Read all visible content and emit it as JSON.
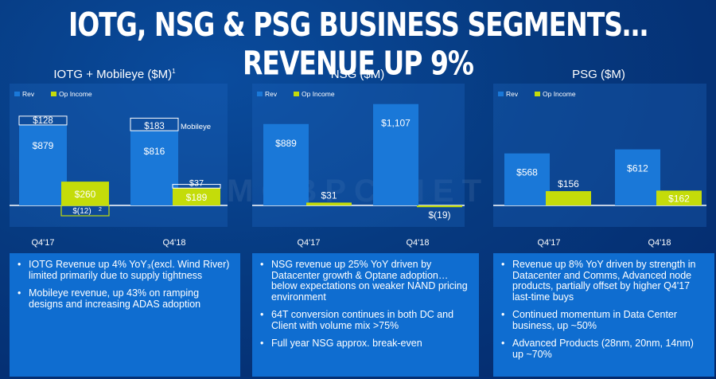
{
  "title": "IOTG, NSG & PSG BUSINESS SEGMENTS… REVENUE UP 9%",
  "watermark": "MOBPC.NET",
  "colors": {
    "rev": "#1a78d8",
    "op_income": "#c4dc0a",
    "background": "#063a80"
  },
  "chart_data": [
    {
      "type": "bar",
      "title": "IOTG + Mobileye ($M)",
      "title_sup": "1",
      "legend": [
        "Rev",
        "Op Income"
      ],
      "categories": [
        "Q4'17",
        "Q4'18"
      ],
      "series": [
        {
          "name": "Rev",
          "values": [
            879,
            816
          ]
        },
        {
          "name": "Op Income",
          "values": [
            260,
            189
          ]
        }
      ],
      "stacked_segments": {
        "name": "Mobileye",
        "rev_values": [
          128,
          183
        ],
        "op_income_values": [
          -12,
          37
        ]
      },
      "labels": {
        "rev": [
          "$879",
          "$816"
        ],
        "rev_mobileye": [
          "$128",
          "$183"
        ],
        "op": [
          "$260",
          "$189"
        ],
        "op_mobileye": [
          "$(12)",
          "$37"
        ],
        "op_mobileye_sup": "2",
        "mobileye": "Mobileye"
      }
    },
    {
      "type": "bar",
      "title": "NSG ($M)",
      "legend": [
        "Rev",
        "Op Income"
      ],
      "categories": [
        "Q4'17",
        "Q4'18"
      ],
      "series": [
        {
          "name": "Rev",
          "values": [
            889,
            1107
          ]
        },
        {
          "name": "Op Income",
          "values": [
            31,
            -19
          ]
        }
      ],
      "labels": {
        "rev": [
          "$889",
          "$1,107"
        ],
        "op": [
          "$31",
          "$(19)"
        ]
      }
    },
    {
      "type": "bar",
      "title": "PSG ($M)",
      "legend": [
        "Rev",
        "Op Income"
      ],
      "categories": [
        "Q4'17",
        "Q4'18"
      ],
      "series": [
        {
          "name": "Rev",
          "values": [
            568,
            612
          ]
        },
        {
          "name": "Op Income",
          "values": [
            156,
            162
          ]
        }
      ],
      "labels": {
        "rev": [
          "$568",
          "$612"
        ],
        "op": [
          "$156",
          "$162"
        ]
      }
    }
  ],
  "bullets": [
    [
      "IOTG Revenue up 4% YoY₃(excl. Wind River) limited primarily due to supply tightness",
      "Mobileye revenue, up 43% on ramping designs and increasing ADAS adoption"
    ],
    [
      "NSG revenue up 25% YoY driven by Datacenter growth & Optane adoption… below expectations on weaker NAND pricing environment",
      "64T conversion continues in both DC and Client with volume mix >75%",
      "Full year NSG approx. break-even"
    ],
    [
      "Revenue up 8% YoY driven by strength in Datacenter and Comms, Advanced node products, partially offset by higher Q4'17 last-time buys",
      "Continued momentum in Data Center business, up ~50%",
      "Advanced Products (28nm, 20nm, 14nm) up ~70%"
    ]
  ]
}
